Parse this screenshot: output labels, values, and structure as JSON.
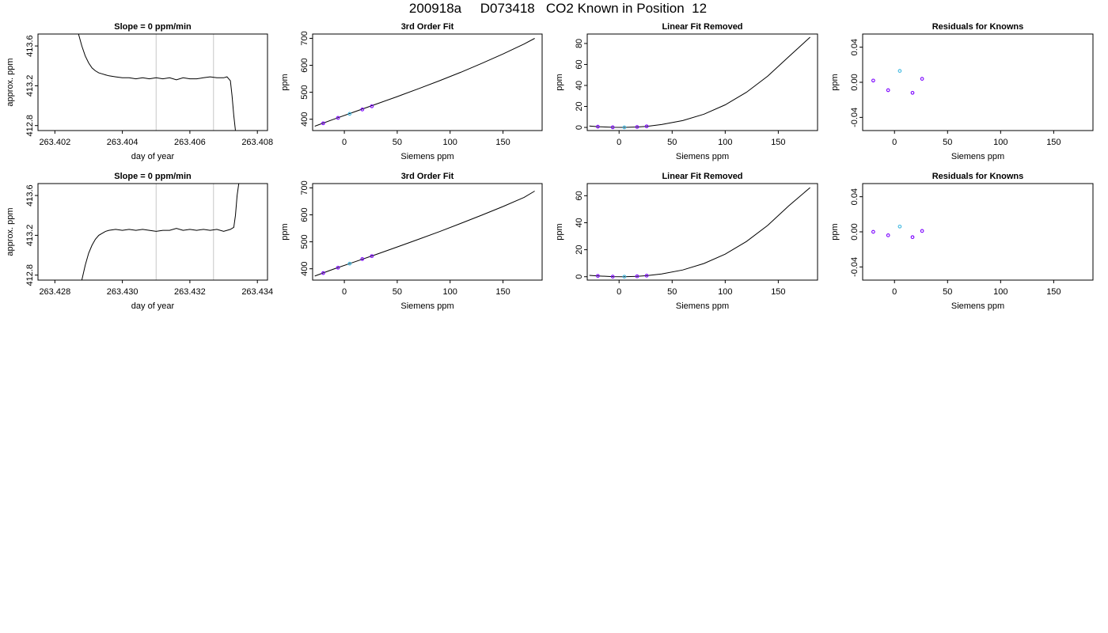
{
  "page_title": "200918a     D073418   CO2 Known in Position  12",
  "colors": {
    "axis": "#000000",
    "curve": "#000000",
    "vline": "#c8c8c8",
    "marker": "#7a00ff",
    "marker_alt": "#3fb8e0"
  },
  "chart_data": [
    {
      "type": "line",
      "title": "Slope =  0  ppm/min",
      "xlabel": "day of year",
      "ylabel": "approx. ppm",
      "xlim": [
        263.4015,
        263.4083
      ],
      "ylim": [
        412.75,
        413.72
      ],
      "xticks": [
        263.402,
        263.404,
        263.406,
        263.408
      ],
      "xticklabels": [
        "263.402",
        "263.404",
        "263.406",
        "263.408"
      ],
      "yticks": [
        412.8,
        413.2,
        413.6
      ],
      "yticklabels": [
        "412.8",
        "413.2",
        "413.6"
      ],
      "grid": false,
      "vlines": [
        263.405,
        263.4067
      ],
      "series": [
        {
          "x": [
            263.4027,
            263.4028,
            263.4029,
            263.403,
            263.4031,
            263.4032,
            263.4033,
            263.4034,
            263.4035,
            263.4036,
            263.4038,
            263.404,
            263.4042,
            263.4044,
            263.4046,
            263.4048,
            263.405,
            263.4052,
            263.4054,
            263.4056,
            263.4058,
            263.406,
            263.4062,
            263.4064,
            263.4066,
            263.4068,
            263.407,
            263.4071,
            263.4072,
            263.40725,
            263.4073,
            263.40735
          ],
          "y": [
            413.72,
            413.6,
            413.5,
            413.43,
            413.38,
            413.35,
            413.33,
            413.32,
            413.31,
            413.3,
            413.29,
            413.28,
            413.28,
            413.27,
            413.28,
            413.27,
            413.28,
            413.27,
            413.28,
            413.26,
            413.28,
            413.27,
            413.27,
            413.28,
            413.29,
            413.28,
            413.28,
            413.29,
            413.25,
            413.1,
            412.9,
            412.75
          ]
        }
      ]
    },
    {
      "type": "scatter",
      "title": "3rd Order Fit",
      "xlabel": "Siemens ppm",
      "ylabel": "ppm",
      "xlim": [
        -30,
        187
      ],
      "ylim": [
        358,
        716
      ],
      "xticks": [
        0,
        50,
        100,
        150
      ],
      "xticklabels": [
        "0",
        "50",
        "100",
        "150"
      ],
      "yticks": [
        400,
        500,
        600,
        700
      ],
      "yticklabels": [
        "400",
        "500",
        "600",
        "700"
      ],
      "grid": false,
      "fit_curve": {
        "x": [
          -28,
          -10,
          10,
          30,
          50,
          70,
          90,
          110,
          130,
          150,
          170,
          180
        ],
        "y": [
          374,
          400,
          428,
          456,
          484,
          513,
          543,
          574,
          607,
          642,
          679,
          700
        ]
      },
      "points": {
        "x": [
          -20,
          -6,
          5,
          17,
          26
        ],
        "y": [
          385,
          405,
          420,
          436,
          448
        ]
      }
    },
    {
      "type": "scatter",
      "title": "Linear Fit Removed",
      "xlabel": "Siemens ppm",
      "ylabel": "ppm",
      "xlim": [
        -30,
        187
      ],
      "ylim": [
        -3,
        89
      ],
      "xticks": [
        0,
        50,
        100,
        150
      ],
      "xticklabels": [
        "0",
        "50",
        "100",
        "150"
      ],
      "yticks": [
        0,
        20,
        40,
        60,
        80
      ],
      "yticklabels": [
        "0",
        "20",
        "40",
        "60",
        "80"
      ],
      "grid": false,
      "fit_curve": {
        "x": [
          -28,
          -20,
          -6,
          5,
          17,
          26,
          40,
          60,
          80,
          100,
          120,
          140,
          160,
          180
        ],
        "y": [
          1.3,
          0.7,
          0.1,
          0,
          0.4,
          1.0,
          2.7,
          6.5,
          12.6,
          21.5,
          33.5,
          48.8,
          67.5,
          86
        ]
      },
      "points": {
        "x": [
          -20,
          -6,
          5,
          17,
          26
        ],
        "y": [
          0.7,
          0.1,
          0,
          0.4,
          1.0
        ]
      }
    },
    {
      "type": "scatter",
      "title": "Residuals for Knowns",
      "xlabel": "Siemens ppm",
      "ylabel": "ppm",
      "xlim": [
        -30,
        187
      ],
      "ylim": [
        -0.055,
        0.055
      ],
      "xticks": [
        0,
        50,
        100,
        150
      ],
      "xticklabels": [
        "0",
        "50",
        "100",
        "150"
      ],
      "yticks": [
        -0.04,
        0,
        0.04
      ],
      "yticklabels": [
        "-0.04",
        "0.00",
        "0.04"
      ],
      "grid": false,
      "points": {
        "x": [
          -20,
          -6,
          5,
          17,
          26
        ],
        "y": [
          0.002,
          -0.009,
          0.013,
          -0.012,
          0.004
        ]
      }
    },
    {
      "type": "line",
      "title": "Slope =  0  ppm/min",
      "xlabel": "day of year",
      "ylabel": "approx. ppm",
      "xlim": [
        263.4275,
        263.4343
      ],
      "ylim": [
        412.75,
        413.72
      ],
      "xticks": [
        263.428,
        263.43,
        263.432,
        263.434
      ],
      "xticklabels": [
        "263.428",
        "263.430",
        "263.432",
        "263.434"
      ],
      "yticks": [
        412.8,
        413.2,
        413.6
      ],
      "yticklabels": [
        "412.8",
        "413.2",
        "413.6"
      ],
      "grid": false,
      "vlines": [
        263.431,
        263.4327
      ],
      "series": [
        {
          "x": [
            263.4288,
            263.4289,
            263.429,
            263.4291,
            263.4292,
            263.4293,
            263.4294,
            263.4295,
            263.4296,
            263.4298,
            263.43,
            263.4302,
            263.4304,
            263.4306,
            263.4308,
            263.431,
            263.4312,
            263.4314,
            263.4316,
            263.4318,
            263.432,
            263.4322,
            263.4324,
            263.4326,
            263.4328,
            263.433,
            263.4332,
            263.4333,
            263.43335,
            263.4334,
            263.43345
          ],
          "y": [
            412.75,
            412.9,
            413.02,
            413.1,
            413.16,
            413.2,
            413.22,
            413.24,
            413.25,
            413.26,
            413.25,
            413.26,
            413.25,
            413.26,
            413.25,
            413.24,
            413.25,
            413.25,
            413.27,
            413.25,
            413.26,
            413.25,
            413.26,
            413.25,
            413.26,
            413.24,
            413.26,
            413.28,
            413.4,
            413.6,
            413.72
          ]
        }
      ]
    },
    {
      "type": "scatter",
      "title": "3rd Order Fit",
      "xlabel": "Siemens ppm",
      "ylabel": "ppm",
      "xlim": [
        -30,
        187
      ],
      "ylim": [
        358,
        716
      ],
      "xticks": [
        0,
        50,
        100,
        150
      ],
      "xticklabels": [
        "0",
        "50",
        "100",
        "150"
      ],
      "yticks": [
        400,
        500,
        600,
        700
      ],
      "yticklabels": [
        "400",
        "500",
        "600",
        "700"
      ],
      "grid": false,
      "fit_curve": {
        "x": [
          -28,
          -10,
          10,
          30,
          50,
          70,
          90,
          110,
          130,
          150,
          170,
          180
        ],
        "y": [
          373,
          399,
          426,
          453,
          481,
          509,
          538,
          568,
          599,
          631,
          665,
          688
        ]
      },
      "points": {
        "x": [
          -20,
          -6,
          5,
          17,
          26
        ],
        "y": [
          384,
          404,
          419,
          436,
          447
        ]
      }
    },
    {
      "type": "scatter",
      "title": "Linear Fit Removed",
      "xlabel": "Siemens ppm",
      "ylabel": "ppm",
      "xlim": [
        -30,
        187
      ],
      "ylim": [
        -2.5,
        69
      ],
      "xticks": [
        0,
        50,
        100,
        150
      ],
      "xticklabels": [
        "0",
        "50",
        "100",
        "150"
      ],
      "yticks": [
        0,
        20,
        40,
        60
      ],
      "yticklabels": [
        "0",
        "20",
        "40",
        "60"
      ],
      "grid": false,
      "fit_curve": {
        "x": [
          -28,
          -20,
          -6,
          5,
          17,
          26,
          40,
          60,
          80,
          100,
          120,
          140,
          160,
          180
        ],
        "y": [
          1.0,
          0.6,
          0.1,
          0,
          0.3,
          0.8,
          2.1,
          5.0,
          9.8,
          16.7,
          26.1,
          38.0,
          52.6,
          66
        ]
      },
      "points": {
        "x": [
          -20,
          -6,
          5,
          17,
          26
        ],
        "y": [
          0.6,
          0.1,
          0,
          0.3,
          0.8
        ]
      }
    },
    {
      "type": "scatter",
      "title": "Residuals for Knowns",
      "xlabel": "Siemens ppm",
      "ylabel": "ppm",
      "xlim": [
        -30,
        187
      ],
      "ylim": [
        -0.055,
        0.055
      ],
      "xticks": [
        0,
        50,
        100,
        150
      ],
      "xticklabels": [
        "0",
        "50",
        "100",
        "150"
      ],
      "yticks": [
        -0.04,
        0,
        0.04
      ],
      "yticklabels": [
        "-0.04",
        "0.00",
        "0.04"
      ],
      "grid": false,
      "points": {
        "x": [
          -20,
          -6,
          5,
          17,
          26
        ],
        "y": [
          0.0,
          -0.004,
          0.006,
          -0.006,
          0.001
        ]
      }
    }
  ]
}
